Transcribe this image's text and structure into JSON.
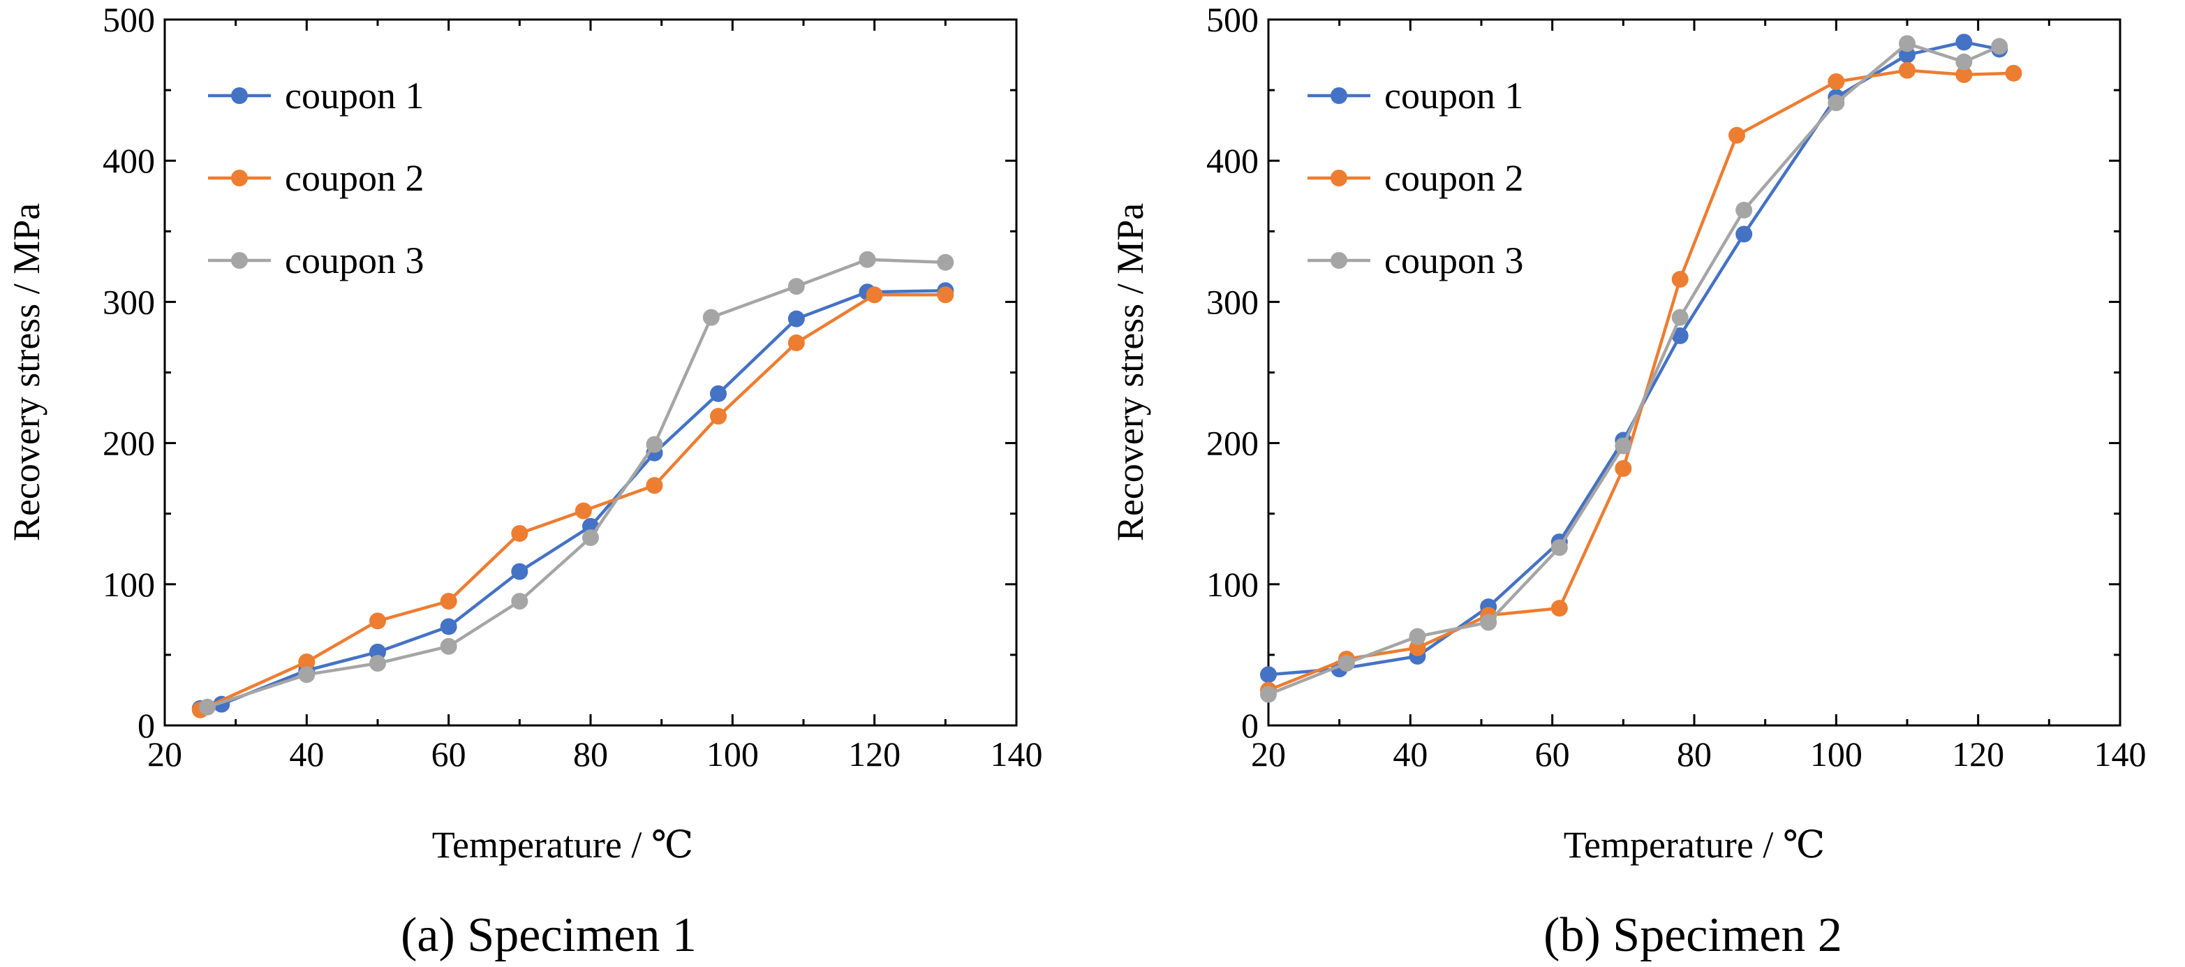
{
  "chart_data": [
    {
      "type": "line",
      "caption": "(a) Specimen 1",
      "xlabel": "Temperature / ℃",
      "ylabel": "Recovery stress / MPa",
      "xlim": [
        20,
        140
      ],
      "ylim": [
        0,
        500
      ],
      "xticks": [
        20,
        40,
        60,
        80,
        100,
        120,
        140
      ],
      "yticks": [
        0,
        100,
        200,
        300,
        400,
        500
      ],
      "grid": false,
      "legend_position": "top-left",
      "series": [
        {
          "name": "coupon 1",
          "color": "#4472C4",
          "x": [
            25,
            28,
            40,
            50,
            60,
            70,
            80,
            89,
            98,
            109,
            119,
            130
          ],
          "y": [
            12,
            15,
            39,
            52,
            70,
            109,
            141,
            193,
            235,
            288,
            307,
            308
          ]
        },
        {
          "name": "coupon 2",
          "color": "#ED7D31",
          "x": [
            25,
            40,
            50,
            60,
            70,
            79,
            89,
            98,
            109,
            120,
            130
          ],
          "y": [
            11,
            45,
            74,
            88,
            136,
            152,
            170,
            219,
            271,
            305,
            305
          ]
        },
        {
          "name": "coupon 3",
          "color": "#A5A5A5",
          "x": [
            26,
            40,
            50,
            60,
            70,
            80,
            89,
            97,
            109,
            119,
            130
          ],
          "y": [
            13,
            36,
            44,
            56,
            88,
            133,
            199,
            289,
            311,
            330,
            328
          ]
        }
      ]
    },
    {
      "type": "line",
      "caption": "(b) Specimen 2",
      "xlabel": "Temperature / ℃",
      "ylabel": "Recovery stress / MPa",
      "xlim": [
        20,
        140
      ],
      "ylim": [
        0,
        500
      ],
      "xticks": [
        20,
        40,
        60,
        80,
        100,
        120,
        140
      ],
      "yticks": [
        0,
        100,
        200,
        300,
        400,
        500
      ],
      "grid": false,
      "legend_position": "top-left",
      "series": [
        {
          "name": "coupon 1",
          "color": "#4472C4",
          "x": [
            20,
            30,
            41,
            51,
            61,
            70,
            78,
            87,
            100,
            110,
            118,
            123
          ],
          "y": [
            36,
            40,
            49,
            84,
            130,
            202,
            276,
            348,
            445,
            475,
            484,
            479
          ]
        },
        {
          "name": "coupon 2",
          "color": "#ED7D31",
          "x": [
            20,
            31,
            41,
            51,
            61,
            70,
            78,
            86,
            100,
            110,
            118,
            125
          ],
          "y": [
            25,
            47,
            55,
            78,
            83,
            182,
            316,
            418,
            456,
            464,
            461,
            462
          ]
        },
        {
          "name": "coupon 3",
          "color": "#A5A5A5",
          "x": [
            20,
            31,
            41,
            51,
            61,
            70,
            78,
            87,
            100,
            110,
            118,
            123
          ],
          "y": [
            22,
            44,
            63,
            73,
            126,
            198,
            289,
            365,
            441,
            483,
            470,
            481
          ]
        }
      ]
    }
  ]
}
